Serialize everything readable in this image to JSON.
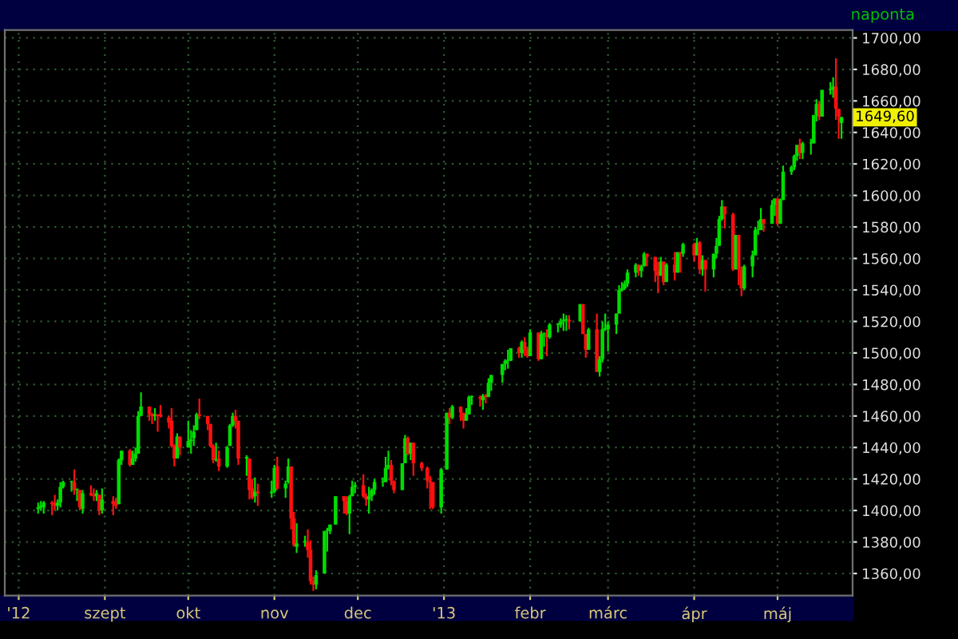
{
  "chart_data": {
    "type": "candlestick",
    "annotations": [
      {
        "text": "1649,60",
        "x": "2013-05-24",
        "y": 1649.6
      },
      "naponta"
    ],
    "grid": true,
    "xlim": [
      "2012-07-27",
      "2013-05-28"
    ],
    "xticks": [
      {
        "value": "2012-08-01",
        "label": "'12"
      },
      {
        "value": "2012-09-01",
        "label": "szept"
      },
      {
        "value": "2012-10-01",
        "label": "okt"
      },
      {
        "value": "2012-11-01",
        "label": "nov"
      },
      {
        "value": "2012-12-01",
        "label": "dec"
      },
      {
        "value": "2013-01-01",
        "label": "'13"
      },
      {
        "value": "2013-02-01",
        "label": "febr"
      },
      {
        "value": "2013-03-01",
        "label": "márc"
      },
      {
        "value": "2013-04-01",
        "label": "ápr"
      },
      {
        "value": "2013-05-01",
        "label": "máj"
      }
    ],
    "ylim": [
      1346,
      1705
    ],
    "yticks": [
      {
        "value": 1360,
        "label": "1360,00"
      },
      {
        "value": 1380,
        "label": "1380,00"
      },
      {
        "value": 1400,
        "label": "1400,00"
      },
      {
        "value": 1420,
        "label": "1420,00"
      },
      {
        "value": 1440,
        "label": "1440,00"
      },
      {
        "value": 1460,
        "label": "1460,00"
      },
      {
        "value": 1480,
        "label": "1480,00"
      },
      {
        "value": 1500,
        "label": "1500,00"
      },
      {
        "value": 1520,
        "label": "1520,00"
      },
      {
        "value": 1540,
        "label": "1540,00"
      },
      {
        "value": 1560,
        "label": "1560,00"
      },
      {
        "value": 1580,
        "label": "1580,00"
      },
      {
        "value": 1600,
        "label": "1600,00"
      },
      {
        "value": 1620,
        "label": "1620,00"
      },
      {
        "value": 1640,
        "label": "1640,00"
      },
      {
        "value": 1660,
        "label": "1660,00"
      },
      {
        "value": 1680,
        "label": "1680,00"
      },
      {
        "value": 1700,
        "label": "1700,00"
      }
    ],
    "x": [
      "2012-08-08",
      "2012-08-09",
      "2012-08-10",
      "2012-08-13",
      "2012-08-14",
      "2012-08-15",
      "2012-08-16",
      "2012-08-17",
      "2012-08-20",
      "2012-08-21",
      "2012-08-22",
      "2012-08-23",
      "2012-08-24",
      "2012-08-27",
      "2012-08-28",
      "2012-08-29",
      "2012-08-30",
      "2012-08-31",
      "2012-09-04",
      "2012-09-05",
      "2012-09-06",
      "2012-09-07",
      "2012-09-10",
      "2012-09-11",
      "2012-09-12",
      "2012-09-13",
      "2012-09-14",
      "2012-09-17",
      "2012-09-18",
      "2012-09-19",
      "2012-09-20",
      "2012-09-21",
      "2012-09-24",
      "2012-09-25",
      "2012-09-26",
      "2012-09-27",
      "2012-09-28",
      "2012-10-01",
      "2012-10-02",
      "2012-10-03",
      "2012-10-04",
      "2012-10-05",
      "2012-10-08",
      "2012-10-09",
      "2012-10-10",
      "2012-10-11",
      "2012-10-12",
      "2012-10-15",
      "2012-10-16",
      "2012-10-17",
      "2012-10-18",
      "2012-10-19",
      "2012-10-22",
      "2012-10-23",
      "2012-10-24",
      "2012-10-25",
      "2012-10-26",
      "2012-10-31",
      "2012-11-01",
      "2012-11-02",
      "2012-11-05",
      "2012-11-06",
      "2012-11-07",
      "2012-11-08",
      "2012-11-09",
      "2012-11-12",
      "2012-11-13",
      "2012-11-14",
      "2012-11-15",
      "2012-11-16",
      "2012-11-19",
      "2012-11-20",
      "2012-11-21",
      "2012-11-23",
      "2012-11-26",
      "2012-11-27",
      "2012-11-28",
      "2012-11-29",
      "2012-11-30",
      "2012-12-03",
      "2012-12-04",
      "2012-12-05",
      "2012-12-06",
      "2012-12-07",
      "2012-12-10",
      "2012-12-11",
      "2012-12-12",
      "2012-12-13",
      "2012-12-14",
      "2012-12-17",
      "2012-12-18",
      "2012-12-19",
      "2012-12-20",
      "2012-12-21",
      "2012-12-24",
      "2012-12-26",
      "2012-12-27",
      "2012-12-28",
      "2012-12-31",
      "2013-01-02",
      "2013-01-03",
      "2013-01-04",
      "2013-01-07",
      "2013-01-08",
      "2013-01-09",
      "2013-01-10",
      "2013-01-11",
      "2013-01-14",
      "2013-01-15",
      "2013-01-16",
      "2013-01-17",
      "2013-01-18",
      "2013-01-22",
      "2013-01-23",
      "2013-01-24",
      "2013-01-25",
      "2013-01-28",
      "2013-01-29",
      "2013-01-30",
      "2013-01-31",
      "2013-02-01",
      "2013-02-04",
      "2013-02-05",
      "2013-02-06",
      "2013-02-07",
      "2013-02-08",
      "2013-02-11",
      "2013-02-12",
      "2013-02-13",
      "2013-02-14",
      "2013-02-15",
      "2013-02-19",
      "2013-02-20",
      "2013-02-21",
      "2013-02-22",
      "2013-02-25",
      "2013-02-26",
      "2013-02-27",
      "2013-02-28",
      "2013-03-01",
      "2013-03-04",
      "2013-03-05",
      "2013-03-06",
      "2013-03-07",
      "2013-03-08",
      "2013-03-11",
      "2013-03-12",
      "2013-03-13",
      "2013-03-14",
      "2013-03-15",
      "2013-03-18",
      "2013-03-19",
      "2013-03-20",
      "2013-03-21",
      "2013-03-22",
      "2013-03-25",
      "2013-03-26",
      "2013-03-27",
      "2013-03-28",
      "2013-04-01",
      "2013-04-02",
      "2013-04-03",
      "2013-04-04",
      "2013-04-05",
      "2013-04-08",
      "2013-04-09",
      "2013-04-10",
      "2013-04-11",
      "2013-04-12",
      "2013-04-15",
      "2013-04-16",
      "2013-04-17",
      "2013-04-18",
      "2013-04-19",
      "2013-04-22",
      "2013-04-23",
      "2013-04-24",
      "2013-04-25",
      "2013-04-26",
      "2013-04-29",
      "2013-04-30",
      "2013-05-01",
      "2013-05-02",
      "2013-05-03",
      "2013-05-06",
      "2013-05-07",
      "2013-05-08",
      "2013-05-09",
      "2013-05-10",
      "2013-05-13",
      "2013-05-14",
      "2013-05-15",
      "2013-05-16",
      "2013-05-17",
      "2013-05-20",
      "2013-05-21",
      "2013-05-22",
      "2013-05-23",
      "2013-05-24"
    ],
    "ohlc": [
      [
        1401,
        1405,
        1398,
        1402
      ],
      [
        1402,
        1406,
        1400,
        1403
      ],
      [
        1402,
        1406,
        1398,
        1405
      ],
      [
        1405,
        1406,
        1397,
        1404
      ],
      [
        1405,
        1410,
        1400,
        1403
      ],
      [
        1403,
        1407,
        1400,
        1405
      ],
      [
        1405,
        1418,
        1402,
        1415
      ],
      [
        1415,
        1419,
        1414,
        1418
      ],
      [
        1418,
        1419,
        1412,
        1418
      ],
      [
        1418,
        1426,
        1410,
        1413
      ],
      [
        1413,
        1414,
        1406,
        1413
      ],
      [
        1413,
        1413,
        1400,
        1402
      ],
      [
        1401,
        1413,
        1398,
        1411
      ],
      [
        1411,
        1416,
        1409,
        1410
      ],
      [
        1410,
        1414,
        1406,
        1409
      ],
      [
        1409,
        1413,
        1406,
        1411
      ],
      [
        1410,
        1410,
        1397,
        1400
      ],
      [
        1400,
        1414,
        1398,
        1407
      ],
      [
        1406,
        1409,
        1397,
        1404
      ],
      [
        1404,
        1408,
        1401,
        1403
      ],
      [
        1404,
        1433,
        1404,
        1432
      ],
      [
        1432,
        1438,
        1429,
        1438
      ],
      [
        1438,
        1439,
        1428,
        1429
      ],
      [
        1429,
        1438,
        1429,
        1433
      ],
      [
        1433,
        1440,
        1431,
        1436
      ],
      [
        1436,
        1463,
        1436,
        1460
      ],
      [
        1460,
        1475,
        1460,
        1466
      ],
      [
        1466,
        1466,
        1457,
        1461
      ],
      [
        1461,
        1462,
        1455,
        1460
      ],
      [
        1460,
        1465,
        1457,
        1461
      ],
      [
        1461,
        1461,
        1450,
        1460
      ],
      [
        1461,
        1467,
        1459,
        1460
      ],
      [
        1459,
        1460,
        1452,
        1456
      ],
      [
        1457,
        1465,
        1440,
        1441
      ],
      [
        1441,
        1442,
        1428,
        1433
      ],
      [
        1433,
        1449,
        1433,
        1447
      ],
      [
        1447,
        1447,
        1435,
        1440
      ],
      [
        1440,
        1457,
        1440,
        1444
      ],
      [
        1444,
        1451,
        1436,
        1445
      ],
      [
        1446,
        1454,
        1441,
        1450
      ],
      [
        1451,
        1462,
        1451,
        1461
      ],
      [
        1461,
        1471,
        1458,
        1460
      ],
      [
        1460,
        1460,
        1451,
        1455
      ],
      [
        1455,
        1455,
        1440,
        1441
      ],
      [
        1441,
        1442,
        1430,
        1432
      ],
      [
        1432,
        1443,
        1431,
        1432
      ],
      [
        1433,
        1438,
        1425,
        1428
      ],
      [
        1428,
        1441,
        1427,
        1440
      ],
      [
        1441,
        1455,
        1441,
        1454
      ],
      [
        1454,
        1462,
        1453,
        1460
      ],
      [
        1460,
        1464,
        1452,
        1457
      ],
      [
        1457,
        1457,
        1429,
        1433
      ],
      [
        1433,
        1435,
        1422,
        1434
      ],
      [
        1433,
        1433,
        1407,
        1413
      ],
      [
        1414,
        1420,
        1407,
        1408
      ],
      [
        1409,
        1421,
        1405,
        1412
      ],
      [
        1412,
        1417,
        1403,
        1411
      ],
      [
        1411,
        1419,
        1408,
        1412
      ],
      [
        1412,
        1429,
        1411,
        1427
      ],
      [
        1428,
        1434,
        1413,
        1414
      ],
      [
        1414,
        1419,
        1408,
        1417
      ],
      [
        1418,
        1433,
        1417,
        1428
      ],
      [
        1428,
        1428,
        1388,
        1395
      ],
      [
        1395,
        1399,
        1377,
        1378
      ],
      [
        1377,
        1392,
        1373,
        1379
      ],
      [
        1380,
        1384,
        1377,
        1380
      ],
      [
        1380,
        1388,
        1370,
        1375
      ],
      [
        1375,
        1381,
        1353,
        1355
      ],
      [
        1355,
        1358,
        1349,
        1353
      ],
      [
        1353,
        1362,
        1350,
        1359
      ],
      [
        1360,
        1387,
        1360,
        1387
      ],
      [
        1387,
        1389,
        1374,
        1387
      ],
      [
        1387,
        1391,
        1385,
        1391
      ],
      [
        1391,
        1409,
        1391,
        1409
      ],
      [
        1409,
        1409,
        1398,
        1406
      ],
      [
        1406,
        1409,
        1397,
        1398
      ],
      [
        1398,
        1410,
        1385,
        1409
      ],
      [
        1409,
        1419,
        1409,
        1415
      ],
      [
        1415,
        1418,
        1411,
        1416
      ],
      [
        1416,
        1423,
        1408,
        1409
      ],
      [
        1409,
        1411,
        1403,
        1407
      ],
      [
        1407,
        1415,
        1398,
        1409
      ],
      [
        1409,
        1414,
        1406,
        1413
      ],
      [
        1413,
        1420,
        1410,
        1418
      ],
      [
        1418,
        1421,
        1415,
        1418
      ],
      [
        1418,
        1434,
        1418,
        1427
      ],
      [
        1427,
        1438,
        1426,
        1429
      ],
      [
        1429,
        1432,
        1416,
        1419
      ],
      [
        1419,
        1419,
        1411,
        1413
      ],
      [
        1413,
        1430,
        1413,
        1430
      ],
      [
        1430,
        1448,
        1430,
        1446
      ],
      [
        1446,
        1447,
        1435,
        1436
      ],
      [
        1436,
        1443,
        1432,
        1443
      ],
      [
        1443,
        1443,
        1422,
        1430
      ],
      [
        1430,
        1431,
        1425,
        1427
      ],
      [
        1427,
        1428,
        1414,
        1419
      ],
      [
        1419,
        1422,
        1401,
        1418
      ],
      [
        1418,
        1418,
        1401,
        1402
      ],
      [
        1402,
        1427,
        1398,
        1426
      ],
      [
        1426,
        1462,
        1426,
        1462
      ],
      [
        1462,
        1465,
        1455,
        1459
      ],
      [
        1459,
        1467,
        1458,
        1466
      ],
      [
        1466,
        1466,
        1457,
        1462
      ],
      [
        1462,
        1462,
        1452,
        1457
      ],
      [
        1457,
        1465,
        1457,
        1461
      ],
      [
        1461,
        1473,
        1461,
        1472
      ],
      [
        1472,
        1473,
        1467,
        1472
      ],
      [
        1472,
        1473,
        1466,
        1471
      ],
      [
        1470,
        1474,
        1464,
        1473
      ],
      [
        1473,
        1474,
        1468,
        1472
      ],
      [
        1472,
        1484,
        1472,
        1481
      ],
      [
        1481,
        1486,
        1476,
        1486
      ],
      [
        1486,
        1493,
        1481,
        1493
      ],
      [
        1493,
        1496,
        1489,
        1495
      ],
      [
        1495,
        1502,
        1490,
        1495
      ],
      [
        1495,
        1503,
        1495,
        1503
      ],
      [
        1503,
        1504,
        1497,
        1500
      ],
      [
        1500,
        1508,
        1497,
        1507
      ],
      [
        1507,
        1510,
        1498,
        1502
      ],
      [
        1502,
        1504,
        1497,
        1498
      ],
      [
        1498,
        1515,
        1498,
        1513
      ],
      [
        1513,
        1513,
        1495,
        1496
      ],
      [
        1496,
        1514,
        1496,
        1512
      ],
      [
        1512,
        1513,
        1504,
        1512
      ],
      [
        1512,
        1515,
        1498,
        1510
      ],
      [
        1510,
        1519,
        1509,
        1518
      ],
      [
        1518,
        1519,
        1513,
        1518
      ],
      [
        1518,
        1522,
        1516,
        1520
      ],
      [
        1520,
        1525,
        1514,
        1521
      ],
      [
        1521,
        1524,
        1514,
        1521
      ],
      [
        1521,
        1524,
        1515,
        1520
      ],
      [
        1520,
        1531,
        1520,
        1531
      ],
      [
        1531,
        1531,
        1512,
        1512
      ],
      [
        1512,
        1512,
        1497,
        1502
      ],
      [
        1502,
        1516,
        1502,
        1515
      ],
      [
        1515,
        1525,
        1488,
        1488
      ],
      [
        1488,
        1498,
        1485,
        1496
      ],
      [
        1496,
        1520,
        1494,
        1515
      ],
      [
        1515,
        1525,
        1514,
        1515
      ],
      [
        1515,
        1520,
        1501,
        1518
      ],
      [
        1518,
        1525,
        1512,
        1525
      ],
      [
        1525,
        1543,
        1525,
        1540
      ],
      [
        1540,
        1545,
        1539,
        1541
      ],
      [
        1541,
        1546,
        1540,
        1544
      ],
      [
        1544,
        1553,
        1542,
        1551
      ],
      [
        1551,
        1557,
        1548,
        1556
      ],
      [
        1556,
        1556,
        1549,
        1552
      ],
      [
        1552,
        1556,
        1548,
        1555
      ],
      [
        1555,
        1564,
        1555,
        1563
      ],
      [
        1563,
        1563,
        1555,
        1561
      ],
      [
        1561,
        1561,
        1545,
        1552
      ],
      [
        1552,
        1558,
        1538,
        1549
      ],
      [
        1549,
        1561,
        1549,
        1558
      ],
      [
        1558,
        1558,
        1543,
        1545
      ],
      [
        1545,
        1557,
        1545,
        1556
      ],
      [
        1556,
        1564,
        1546,
        1551
      ],
      [
        1551,
        1564,
        1551,
        1564
      ],
      [
        1564,
        1564,
        1551,
        1563
      ],
      [
        1563,
        1570,
        1561,
        1569
      ],
      [
        1569,
        1570,
        1558,
        1562
      ],
      [
        1562,
        1573,
        1562,
        1570
      ],
      [
        1570,
        1571,
        1550,
        1553
      ],
      [
        1553,
        1562,
        1549,
        1559
      ],
      [
        1559,
        1559,
        1539,
        1553
      ],
      [
        1553,
        1563,
        1548,
        1563
      ],
      [
        1563,
        1573,
        1560,
        1568
      ],
      [
        1568,
        1587,
        1568,
        1585
      ],
      [
        1585,
        1597,
        1584,
        1593
      ],
      [
        1593,
        1593,
        1579,
        1588
      ],
      [
        1588,
        1589,
        1552,
        1553
      ],
      [
        1553,
        1575,
        1553,
        1575
      ],
      [
        1575,
        1575,
        1543,
        1553
      ],
      [
        1553,
        1555,
        1536,
        1541
      ],
      [
        1541,
        1556,
        1540,
        1555
      ],
      [
        1555,
        1565,
        1548,
        1562
      ],
      [
        1562,
        1580,
        1562,
        1578
      ],
      [
        1578,
        1584,
        1575,
        1578
      ],
      [
        1578,
        1592,
        1578,
        1585
      ],
      [
        1585,
        1585,
        1577,
        1582
      ],
      [
        1582,
        1597,
        1582,
        1594
      ],
      [
        1594,
        1598,
        1587,
        1598
      ],
      [
        1598,
        1598,
        1581,
        1582
      ],
      [
        1582,
        1598,
        1582,
        1597
      ],
      [
        1597,
        1619,
        1597,
        1615
      ],
      [
        1615,
        1619,
        1613,
        1618
      ],
      [
        1618,
        1626,
        1616,
        1625
      ],
      [
        1625,
        1632,
        1622,
        1632
      ],
      [
        1632,
        1636,
        1623,
        1627
      ],
      [
        1627,
        1634,
        1623,
        1633
      ],
      [
        1633,
        1636,
        1626,
        1633
      ],
      [
        1633,
        1651,
        1633,
        1651
      ],
      [
        1651,
        1661,
        1647,
        1658
      ],
      [
        1658,
        1660,
        1648,
        1650
      ],
      [
        1650,
        1667,
        1650,
        1667
      ],
      [
        1667,
        1672,
        1664,
        1667
      ],
      [
        1667,
        1675,
        1662,
        1669
      ],
      [
        1669,
        1687,
        1648,
        1655
      ],
      [
        1655,
        1655,
        1636,
        1650
      ],
      [
        1646,
        1650,
        1636,
        1649.6
      ]
    ]
  }
}
